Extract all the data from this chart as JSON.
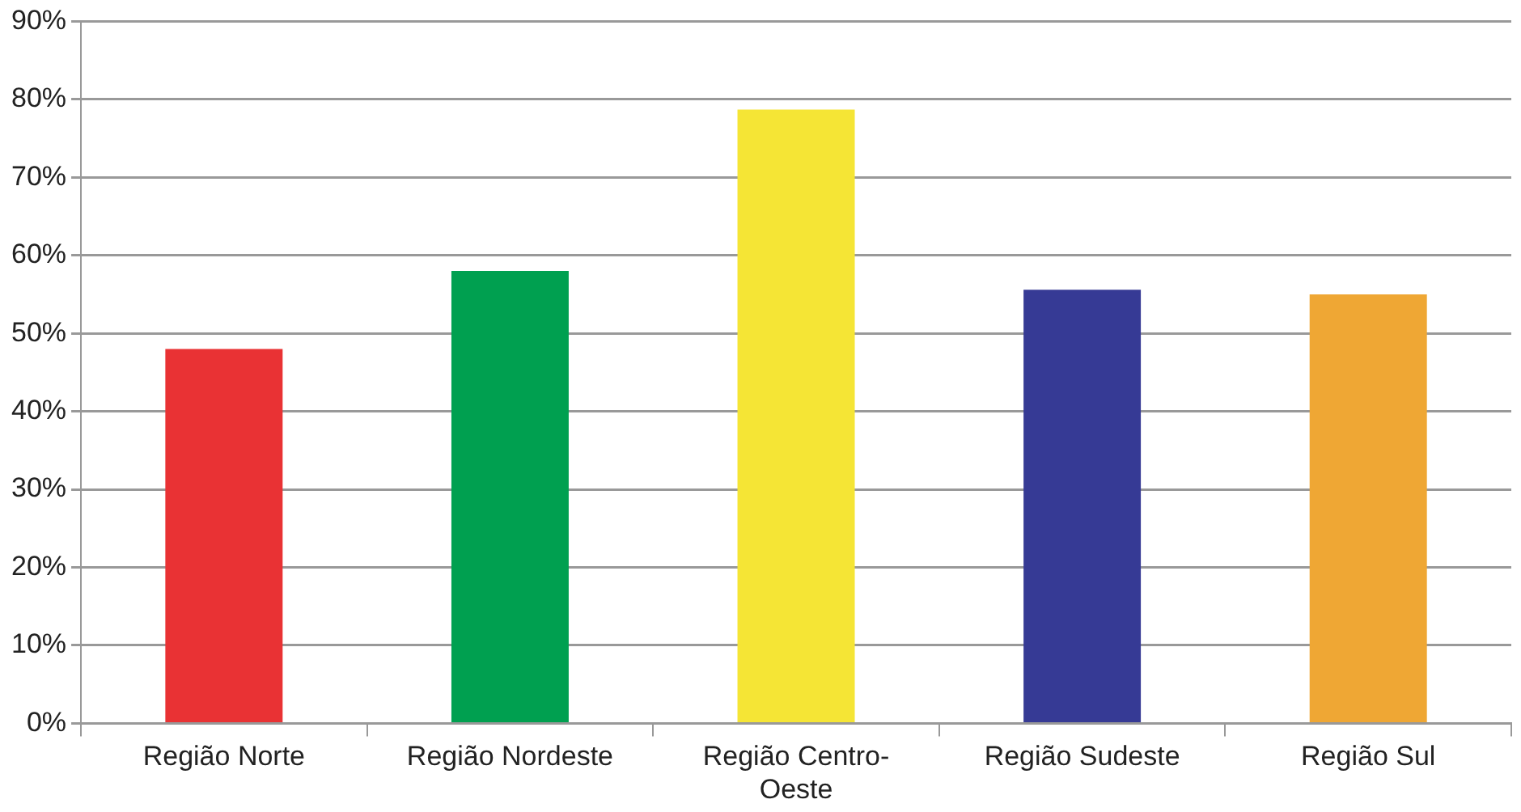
{
  "chart_data": {
    "type": "bar",
    "categories": [
      "Região Norte",
      "Região Nordeste",
      "Região Centro-Oeste",
      "Região Sudeste",
      "Região Sul"
    ],
    "values": [
      48,
      58,
      78.7,
      55.6,
      55
    ],
    "colors": [
      "#e93234",
      "#00a050",
      "#f5e535",
      "#363a95",
      "#efa734"
    ],
    "ylim": [
      0,
      90
    ],
    "yticks": [
      {
        "value": 0,
        "label": "0%"
      },
      {
        "value": 10,
        "label": "10%"
      },
      {
        "value": 20,
        "label": "20%"
      },
      {
        "value": 30,
        "label": "30%"
      },
      {
        "value": 40,
        "label": "40%"
      },
      {
        "value": 50,
        "label": "50%"
      },
      {
        "value": 60,
        "label": "60%"
      },
      {
        "value": 70,
        "label": "70%"
      },
      {
        "value": 80,
        "label": "80%"
      },
      {
        "value": 90,
        "label": "90%"
      }
    ],
    "grid": "y"
  }
}
